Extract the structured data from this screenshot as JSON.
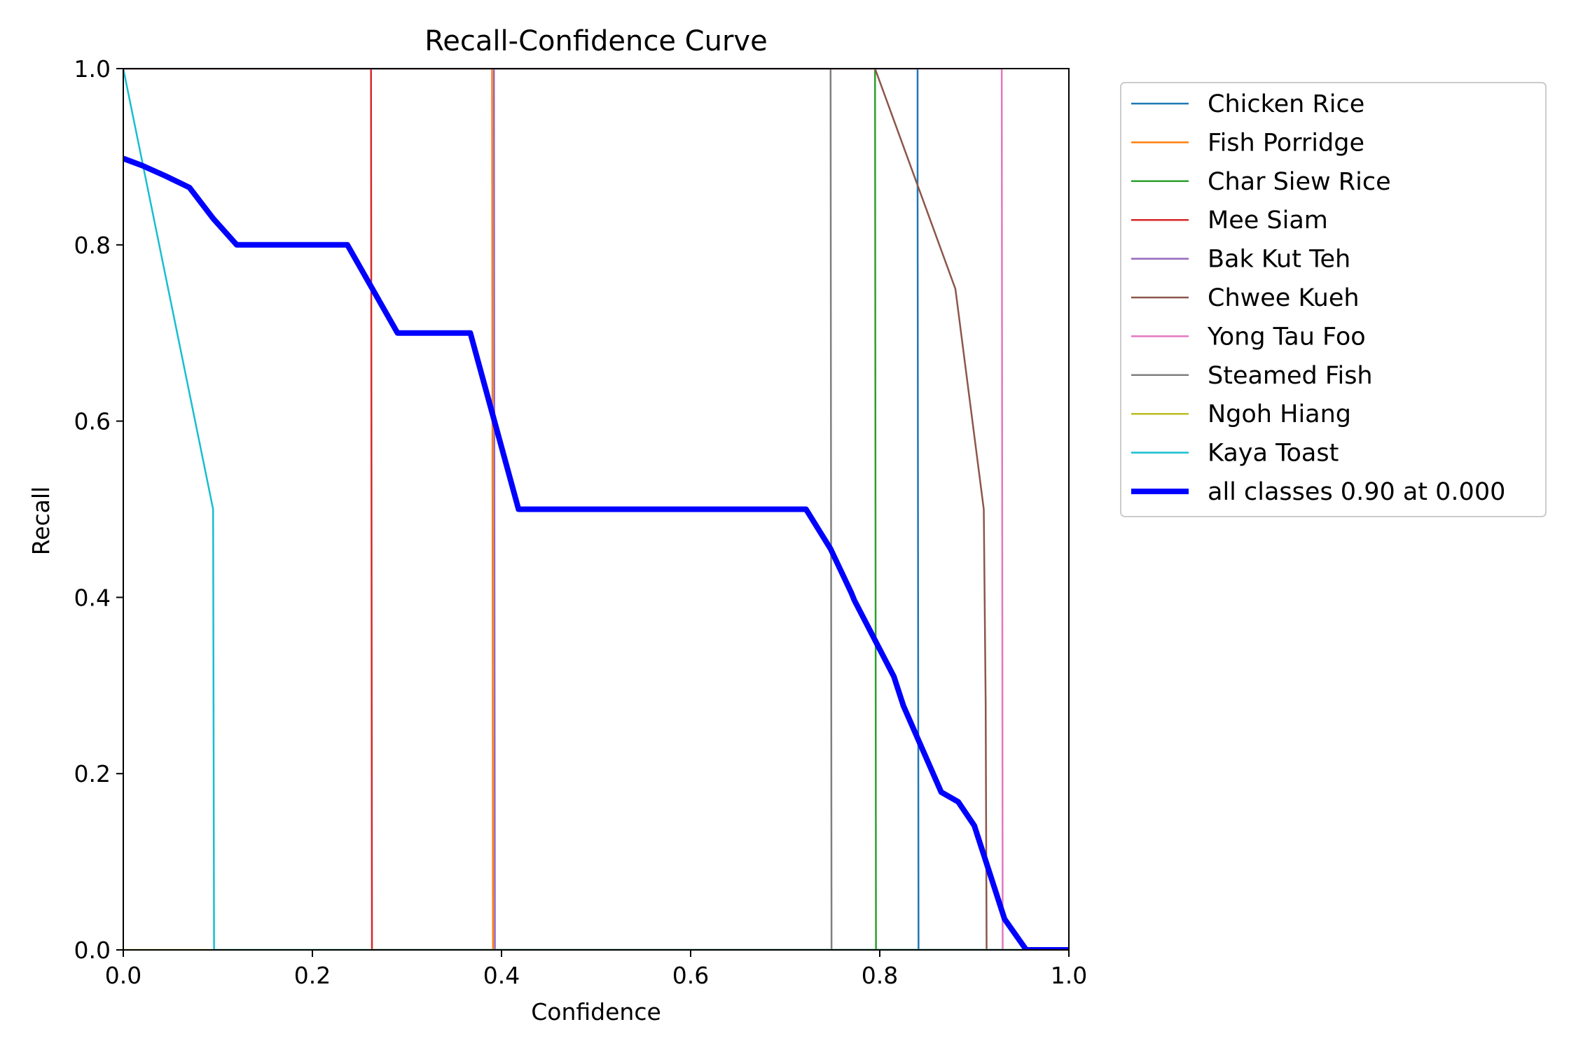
{
  "chart_data": {
    "type": "line",
    "title": "Recall-Confidence Curve",
    "xlabel": "Confidence",
    "ylabel": "Recall",
    "xlim": [
      0,
      1
    ],
    "ylim": [
      0,
      1
    ],
    "grid": false,
    "legend_position": "outside-right",
    "xticks": [
      "0.0",
      "0.2",
      "0.4",
      "0.6",
      "0.8",
      "1.0"
    ],
    "yticks": [
      "0.0",
      "0.2",
      "0.4",
      "0.6",
      "0.8",
      "1.0"
    ],
    "series": [
      {
        "name": "Chicken Rice",
        "color": "#1f77b4",
        "points": [
          [
            0,
            1.0
          ],
          [
            0.84,
            1.0
          ],
          [
            0.84,
            0.87
          ],
          [
            0.841,
            0.0
          ],
          [
            1.0,
            0.0
          ]
        ]
      },
      {
        "name": "Fish Porridge",
        "color": "#ff7f0e",
        "points": [
          [
            0,
            1.0
          ],
          [
            0.39,
            1.0
          ],
          [
            0.391,
            0.0
          ],
          [
            1.0,
            0.0
          ]
        ]
      },
      {
        "name": "Char Siew Rice",
        "color": "#2ca02c",
        "points": [
          [
            0,
            1.0
          ],
          [
            0.795,
            1.0
          ],
          [
            0.796,
            0.0
          ],
          [
            1.0,
            0.0
          ]
        ]
      },
      {
        "name": "Mee Siam",
        "color": "#d62728",
        "points": [
          [
            0,
            1.0
          ],
          [
            0.262,
            1.0
          ],
          [
            0.263,
            0.0
          ],
          [
            1.0,
            0.0
          ]
        ]
      },
      {
        "name": "Bak Kut Teh",
        "color": "#9467bd",
        "points": [
          [
            0,
            1.0
          ],
          [
            0.392,
            1.0
          ],
          [
            0.393,
            0.0
          ],
          [
            1.0,
            0.0
          ]
        ]
      },
      {
        "name": "Chwee Kueh",
        "color": "#8c564b",
        "points": [
          [
            0,
            1.0
          ],
          [
            0.795,
            1.0
          ],
          [
            0.88,
            0.75
          ],
          [
            0.91,
            0.5
          ],
          [
            0.912,
            0.28
          ],
          [
            0.913,
            0.0
          ],
          [
            1.0,
            0.0
          ]
        ]
      },
      {
        "name": "Yong Tau Foo",
        "color": "#e377c2",
        "points": [
          [
            0,
            1.0
          ],
          [
            0.929,
            1.0
          ],
          [
            0.93,
            0.0
          ],
          [
            1.0,
            0.0
          ]
        ]
      },
      {
        "name": "Steamed Fish",
        "color": "#7f7f7f",
        "points": [
          [
            0,
            1.0
          ],
          [
            0.748,
            1.0
          ],
          [
            0.749,
            0.0
          ],
          [
            1.0,
            0.0
          ]
        ]
      },
      {
        "name": "Ngoh Hiang",
        "color": "#bcbd22",
        "points": [
          [
            0,
            0.0
          ],
          [
            1.0,
            0.0
          ]
        ]
      },
      {
        "name": "Kaya Toast",
        "color": "#17becf",
        "points": [
          [
            0,
            1.0
          ],
          [
            0.095,
            0.5
          ],
          [
            0.096,
            0.0
          ],
          [
            1.0,
            0.0
          ]
        ]
      },
      {
        "name": "all classes 0.90 at 0.000",
        "color": "#0000ff",
        "bold": true,
        "points": [
          [
            0,
            0.898
          ],
          [
            0.02,
            0.89
          ],
          [
            0.045,
            0.878
          ],
          [
            0.07,
            0.865
          ],
          [
            0.095,
            0.83
          ],
          [
            0.12,
            0.8
          ],
          [
            0.237,
            0.8
          ],
          [
            0.29,
            0.7
          ],
          [
            0.367,
            0.7
          ],
          [
            0.418,
            0.5
          ],
          [
            0.722,
            0.5
          ],
          [
            0.748,
            0.455
          ],
          [
            0.77,
            0.405
          ],
          [
            0.773,
            0.397
          ],
          [
            0.815,
            0.31
          ],
          [
            0.825,
            0.277
          ],
          [
            0.865,
            0.179
          ],
          [
            0.883,
            0.168
          ],
          [
            0.9,
            0.141
          ],
          [
            0.932,
            0.035
          ],
          [
            0.955,
            0.0
          ],
          [
            1.0,
            0.0
          ]
        ]
      }
    ]
  }
}
